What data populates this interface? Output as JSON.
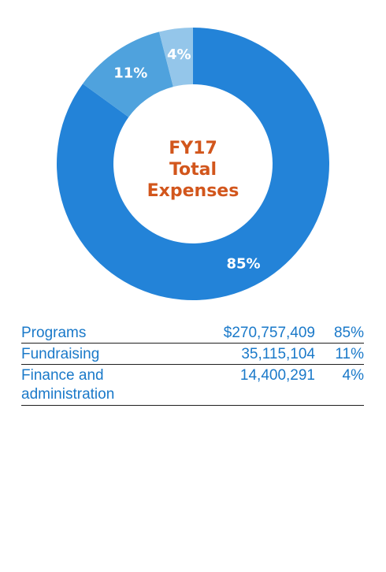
{
  "chart_data": {
    "type": "pie",
    "title": "FY17 Total Expenses",
    "title_lines": [
      "FY17",
      "Total",
      "Expenses"
    ],
    "categories": [
      "Programs",
      "Fundraising",
      "Finance and administration"
    ],
    "values": [
      85,
      11,
      4
    ],
    "slice_labels": [
      "85%",
      "11%",
      "4%"
    ],
    "colors": [
      "#2383d8",
      "#4fa2dd",
      "#94c6ea"
    ]
  },
  "table": {
    "rows": [
      {
        "category": "Programs",
        "amount": "$270,757,409",
        "percent": "85%"
      },
      {
        "category": "Fundraising",
        "amount": "35,115,104",
        "percent": "11%"
      },
      {
        "category": "Finance and administration",
        "amount": "14,400,291",
        "percent": "4%"
      }
    ]
  }
}
